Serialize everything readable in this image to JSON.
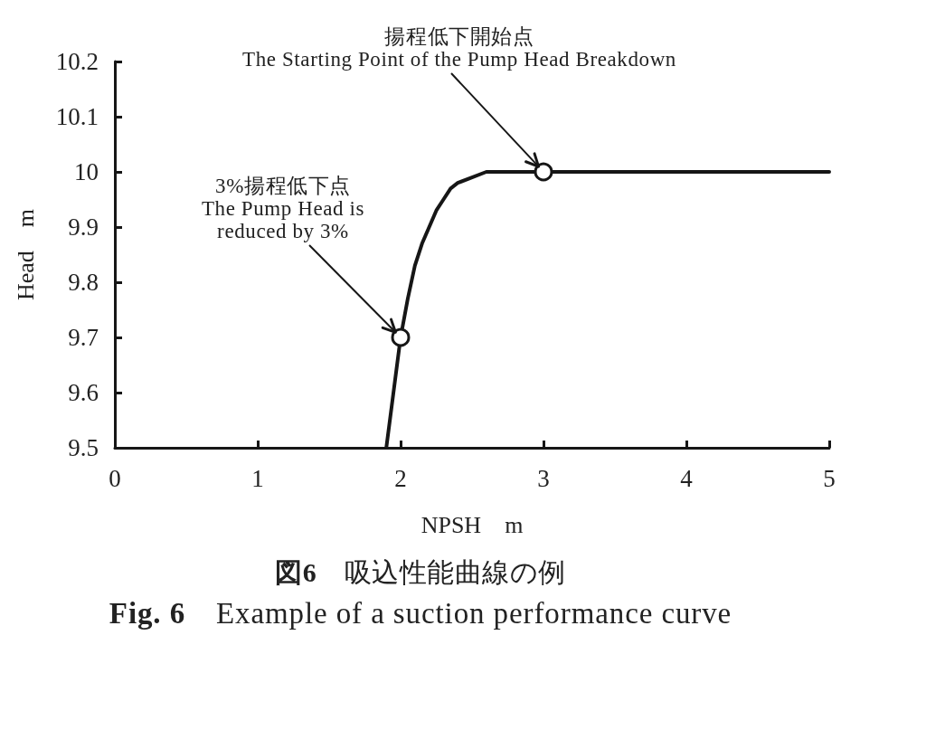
{
  "chart_data": {
    "type": "line",
    "title": "図6　吸込性能曲線の例",
    "subtitle": "Fig. 6　Example of a suction performance curve",
    "xlabel": "NPSH　m",
    "ylabel": "Head　m",
    "xlim": [
      0,
      5
    ],
    "xticks": [
      0,
      1,
      2,
      3,
      4,
      5
    ],
    "ylim": [
      9.5,
      10.2
    ],
    "yticks": [
      9.5,
      9.6,
      9.7,
      9.8,
      9.9,
      10,
      10.1,
      10.2
    ],
    "grid": false,
    "series": [
      {
        "type": "line",
        "color": "#161616",
        "marker": "none",
        "line_style": "solid",
        "x": [
          1.9,
          1.95,
          2.0,
          2.05,
          2.1,
          2.15,
          2.2,
          2.25,
          2.3,
          2.35,
          2.4,
          2.5,
          2.6,
          3,
          5
        ],
        "values": [
          9.5,
          9.6,
          9.7,
          9.77,
          9.83,
          9.87,
          9.9,
          9.93,
          9.95,
          9.97,
          9.98,
          9.99,
          10,
          10,
          10
        ]
      },
      {
        "type": "scatter",
        "color": "#161616",
        "marker": "circle",
        "x": [
          2,
          3
        ],
        "values": [
          9.7,
          10
        ]
      }
    ],
    "annotations": [
      {
        "text": "揚程低下開始点\nThe Starting Point of the Pump Head Breakdown",
        "x": 3,
        "y": 10
      },
      {
        "text": "3%揚程低下点\nThe Pump Head is\nreduced by 3%",
        "x": 2,
        "y": 9.7
      }
    ]
  }
}
